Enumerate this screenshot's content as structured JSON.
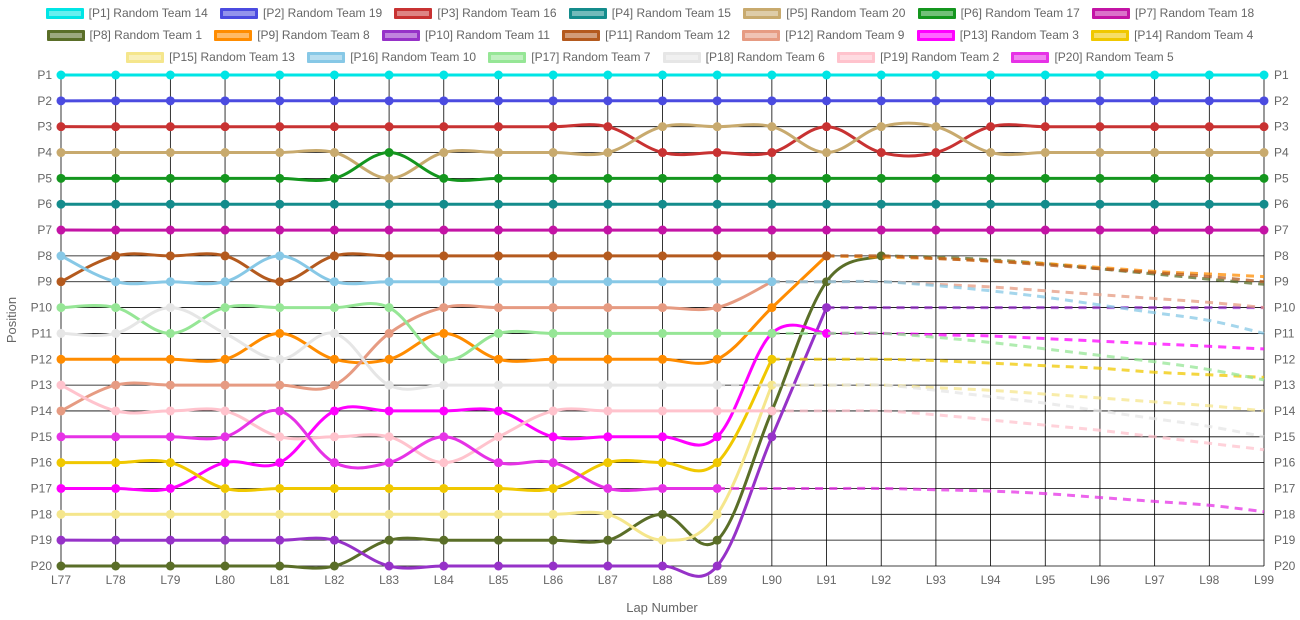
{
  "chart_data": {
    "type": "line",
    "title": "",
    "xlabel": "Lap Number",
    "ylabel": "Position",
    "x": [
      "L77",
      "L78",
      "L79",
      "L80",
      "L81",
      "L82",
      "L83",
      "L84",
      "L85",
      "L86",
      "L87",
      "L88",
      "L89",
      "L90",
      "L91",
      "L92",
      "L93",
      "L94",
      "L95",
      "L96",
      "L97",
      "L98",
      "L99"
    ],
    "y_ticks": [
      "P1",
      "P2",
      "P3",
      "P4",
      "P5",
      "P6",
      "P7",
      "P8",
      "P9",
      "P10",
      "P11",
      "P12",
      "P13",
      "P14",
      "P15",
      "P16",
      "P17",
      "P18",
      "P19",
      "P20"
    ],
    "y_reversed": true,
    "ylim": [
      1,
      20
    ],
    "grid": true,
    "legend_position": "top",
    "series": [
      {
        "name": "[P1] Random Team 14",
        "color": "#00e5e5",
        "values": [
          1,
          1,
          1,
          1,
          1,
          1,
          1,
          1,
          1,
          1,
          1,
          1,
          1,
          1,
          1,
          1,
          1,
          1,
          1,
          1,
          1,
          1,
          1
        ],
        "last_known": 22
      },
      {
        "name": "[P2] Random Team 19",
        "color": "#4b4be0",
        "values": [
          2,
          2,
          2,
          2,
          2,
          2,
          2,
          2,
          2,
          2,
          2,
          2,
          2,
          2,
          2,
          2,
          2,
          2,
          2,
          2,
          2,
          2,
          2
        ],
        "last_known": 22
      },
      {
        "name": "[P3] Random Team 16",
        "color": "#c83232",
        "values": [
          3,
          3,
          3,
          3,
          3,
          3,
          3,
          3,
          3,
          3,
          3,
          4,
          4,
          4,
          3,
          4,
          4,
          3,
          3,
          3,
          3,
          3,
          3
        ],
        "last_known": 22
      },
      {
        "name": "[P4] Random Team 15",
        "color": "#148c8c",
        "values": [
          6,
          6,
          6,
          6,
          6,
          6,
          6,
          6,
          6,
          6,
          6,
          6,
          6,
          6,
          6,
          6,
          6,
          6,
          6,
          6,
          6,
          6,
          6
        ],
        "last_known": 22
      },
      {
        "name": "[P5] Random Team 20",
        "color": "#c8aa6e",
        "values": [
          4,
          4,
          4,
          4,
          4,
          4,
          5,
          4,
          4,
          4,
          4,
          3,
          3,
          3,
          4,
          3,
          3,
          4,
          4,
          4,
          4,
          4,
          4
        ],
        "last_known": 22
      },
      {
        "name": "[P6] Random Team 17",
        "color": "#14961e",
        "values": [
          5,
          5,
          5,
          5,
          5,
          5,
          4,
          5,
          5,
          5,
          5,
          5,
          5,
          5,
          5,
          5,
          5,
          5,
          5,
          5,
          5,
          5,
          5
        ],
        "last_known": 22
      },
      {
        "name": "[P7] Random Team 18",
        "color": "#c314a5",
        "values": [
          7,
          7,
          7,
          7,
          7,
          7,
          7,
          7,
          7,
          7,
          7,
          7,
          7,
          7,
          7,
          7,
          7,
          7,
          7,
          7,
          7,
          7,
          7
        ],
        "last_known": 22
      },
      {
        "name": "[P8] Random Team 1",
        "color": "#5a6e28",
        "values": [
          20,
          20,
          20,
          20,
          20,
          20,
          19,
          19,
          19,
          19,
          19,
          18,
          19,
          14,
          9,
          8,
          8.05,
          8.15,
          8.3,
          8.5,
          8.7,
          8.9,
          9.1
        ],
        "last_known": 15
      },
      {
        "name": "[P9] Random Team 8",
        "color": "#ff8c00",
        "values": [
          12,
          12,
          12,
          12,
          11,
          12,
          12,
          11,
          12,
          12,
          12,
          12,
          12,
          10,
          8,
          8.05,
          8.1,
          8.2,
          8.3,
          8.45,
          8.6,
          8.7,
          8.8
        ],
        "last_known": 14
      },
      {
        "name": "[P10] Random Team 11",
        "color": "#9632c8",
        "values": [
          19,
          19,
          19,
          19,
          19,
          19,
          20,
          20,
          20,
          20,
          20,
          20,
          20,
          15,
          10,
          10,
          10,
          10,
          10,
          10,
          10,
          10,
          10
        ],
        "last_known": 14
      },
      {
        "name": "[P11] Random Team 12",
        "color": "#b45a1e",
        "values": [
          9,
          8,
          8,
          8,
          9,
          8,
          8,
          8,
          8,
          8,
          8,
          8,
          8,
          8,
          8,
          8,
          8.1,
          8.2,
          8.35,
          8.5,
          8.65,
          8.8,
          9
        ],
        "last_known": 14
      },
      {
        "name": "[P12] Random Team 9",
        "color": "#e69b82",
        "values": [
          14,
          13,
          13,
          13,
          13,
          13,
          11,
          10,
          10,
          10,
          10,
          10,
          10,
          9,
          9,
          9,
          9.1,
          9.2,
          9.35,
          9.5,
          9.65,
          9.8,
          10
        ],
        "last_known": 13
      },
      {
        "name": "[P13] Random Team 3",
        "color": "#ff00ff",
        "values": [
          17,
          17,
          17,
          16,
          16,
          14,
          14,
          14,
          14,
          15,
          15,
          15,
          15,
          11,
          11,
          11,
          11.05,
          11.1,
          11.2,
          11.3,
          11.4,
          11.5,
          11.6
        ],
        "last_known": 14
      },
      {
        "name": "[P14] Random Team 4",
        "color": "#f0c800",
        "values": [
          16,
          16,
          16,
          17,
          17,
          17,
          17,
          17,
          17,
          17,
          16,
          16,
          16,
          12,
          12,
          12,
          12.05,
          12.15,
          12.25,
          12.35,
          12.5,
          12.6,
          12.7
        ],
        "last_known": 13
      },
      {
        "name": "[P15] Random Team 13",
        "color": "#f5e68c",
        "values": [
          18,
          18,
          18,
          18,
          18,
          18,
          18,
          18,
          18,
          18,
          18,
          19,
          18,
          13,
          13,
          13,
          13.1,
          13.2,
          13.35,
          13.5,
          13.65,
          13.8,
          14
        ],
        "last_known": 13
      },
      {
        "name": "[P16] Random Team 10",
        "color": "#87c8e6",
        "values": [
          8,
          9,
          9,
          9,
          8,
          9,
          9,
          9,
          9,
          9,
          9,
          9,
          9,
          9,
          9,
          9,
          9.15,
          9.35,
          9.6,
          9.9,
          10.2,
          10.5,
          11
        ],
        "last_known": 13
      },
      {
        "name": "[P17] Random Team 7",
        "color": "#96e696",
        "values": [
          10,
          10,
          11,
          10,
          10,
          10,
          10,
          12,
          11,
          11,
          11,
          11,
          11,
          11,
          11,
          11,
          11.15,
          11.35,
          11.6,
          11.85,
          12.1,
          12.4,
          12.8
        ],
        "last_known": 13
      },
      {
        "name": "[P18] Random Team 6",
        "color": "#e6e6e6",
        "values": [
          11,
          11,
          10,
          11,
          12,
          11,
          13,
          13,
          13,
          13,
          13,
          13,
          13,
          13,
          13,
          13,
          13.2,
          13.45,
          13.7,
          14,
          14.3,
          14.6,
          15
        ],
        "last_known": 12
      },
      {
        "name": "[P19] Random Team 2",
        "color": "#ffc3cd",
        "values": [
          13,
          14,
          14,
          14,
          15,
          15,
          15,
          16,
          15,
          14,
          14,
          14,
          14,
          14,
          14,
          14,
          14.15,
          14.35,
          14.55,
          14.75,
          15,
          15.25,
          15.5
        ],
        "last_known": 13
      },
      {
        "name": "[P20] Random Team 5",
        "color": "#e632e6",
        "values": [
          15,
          15,
          15,
          15,
          14,
          16,
          16,
          15,
          16,
          16,
          17,
          17,
          17,
          17,
          17,
          17,
          17.05,
          17.1,
          17.2,
          17.35,
          17.5,
          17.65,
          17.9
        ],
        "last_known": 12
      }
    ]
  }
}
